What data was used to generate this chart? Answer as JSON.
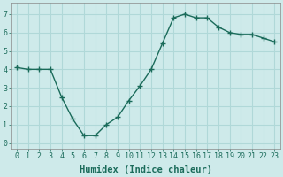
{
  "x": [
    0,
    1,
    2,
    3,
    4,
    5,
    6,
    7,
    8,
    9,
    10,
    11,
    12,
    13,
    14,
    15,
    16,
    17,
    18,
    19,
    20,
    21,
    22,
    23
  ],
  "y": [
    4.1,
    4.0,
    4.0,
    4.0,
    2.5,
    1.3,
    0.4,
    0.4,
    1.0,
    1.4,
    2.3,
    3.1,
    4.0,
    5.4,
    6.8,
    7.0,
    6.8,
    6.8,
    6.3,
    6.0,
    5.9,
    5.9,
    5.7,
    5.5
  ],
  "line_color": "#1a6b5a",
  "marker": "+",
  "marker_size": 4.0,
  "bg_color": "#ceeaea",
  "grid_color": "#b0d8d8",
  "xlabel": "Humidex (Indice chaleur)",
  "xlim": [
    -0.5,
    23.5
  ],
  "ylim": [
    -0.3,
    7.6
  ],
  "xtick_labels": [
    "0",
    "1",
    "2",
    "3",
    "4",
    "5",
    "6",
    "7",
    "8",
    "9",
    "10",
    "11",
    "12",
    "13",
    "14",
    "15",
    "16",
    "17",
    "18",
    "19",
    "20",
    "21",
    "22",
    "23"
  ],
  "yticks": [
    0,
    1,
    2,
    3,
    4,
    5,
    6,
    7
  ],
  "xlabel_fontsize": 7.5,
  "tick_fontsize": 6.0,
  "linewidth": 1.0,
  "marker_linewidth": 1.0
}
